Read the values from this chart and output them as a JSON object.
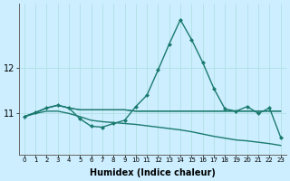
{
  "xlabel": "Humidex (Indice chaleur)",
  "x": [
    0,
    1,
    2,
    3,
    4,
    5,
    6,
    7,
    8,
    9,
    10,
    11,
    12,
    13,
    14,
    15,
    16,
    17,
    18,
    19,
    20,
    21,
    22,
    23
  ],
  "line1": [
    10.93,
    11.02,
    11.12,
    11.18,
    11.12,
    10.88,
    10.72,
    10.7,
    10.78,
    10.85,
    11.15,
    11.4,
    11.95,
    12.52,
    13.05,
    12.62,
    12.12,
    11.55,
    11.1,
    11.05,
    11.15,
    11.0,
    11.12,
    10.48
  ],
  "line2": [
    10.93,
    11.02,
    11.12,
    11.18,
    11.12,
    11.08,
    11.08,
    11.08,
    11.08,
    11.08,
    11.05,
    11.05,
    11.05,
    11.05,
    11.05,
    11.05,
    11.05,
    11.05,
    11.05,
    11.05,
    11.05,
    11.05,
    11.05,
    11.05
  ],
  "line3": [
    10.93,
    11.02,
    11.12,
    11.18,
    11.12,
    11.08,
    11.08,
    11.08,
    11.08,
    11.08,
    11.05,
    11.05,
    11.05,
    11.05,
    11.05,
    11.05,
    11.05,
    11.05,
    11.05,
    11.05,
    11.05,
    11.05,
    11.05,
    11.05
  ],
  "line4": [
    10.93,
    11.0,
    11.05,
    11.05,
    11.0,
    10.93,
    10.85,
    10.82,
    10.8,
    10.78,
    10.76,
    10.73,
    10.7,
    10.67,
    10.64,
    10.6,
    10.55,
    10.5,
    10.46,
    10.42,
    10.4,
    10.37,
    10.34,
    10.3
  ],
  "bg_color": "#cceeff",
  "line_color": "#1a7a6e",
  "hgrid_color": "#aadddd",
  "vgrid_color": "#aadddd",
  "ylim": [
    10.1,
    13.4
  ],
  "yticks": [
    11,
    12
  ],
  "marker": "D",
  "markersize": 2.5,
  "linewidth": 1.0
}
